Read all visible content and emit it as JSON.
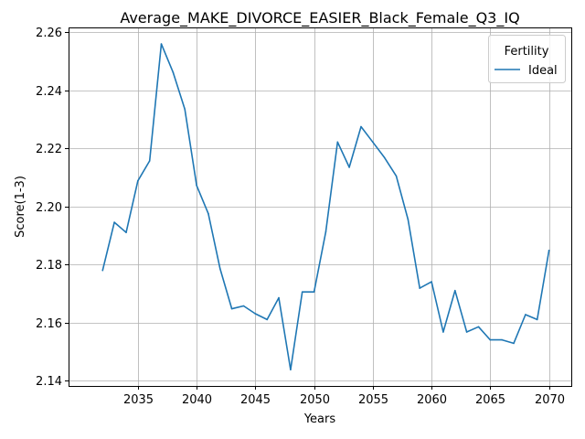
{
  "chart_data": {
    "type": "line",
    "title": "Average_MAKE_DIVORCE_EASIER_Black_Female_Q3_IQ",
    "xlabel": "Years",
    "ylabel": "Score(1-3)",
    "xlim": [
      2029.1,
      2071.9
    ],
    "ylim": [
      2.1381,
      2.2617
    ],
    "xticks": [
      2035,
      2040,
      2045,
      2050,
      2055,
      2060,
      2065,
      2070
    ],
    "yticks": [
      2.14,
      2.16,
      2.18,
      2.2,
      2.22,
      2.24,
      2.26
    ],
    "ytick_labels": [
      "2.14",
      "2.16",
      "2.18",
      "2.20",
      "2.22",
      "2.24",
      "2.26"
    ],
    "grid": true,
    "legend": {
      "title": "Fertility",
      "position": "top-right"
    },
    "series": [
      {
        "name": "Ideal",
        "color": "#1f77b4",
        "x": [
          2032,
          2033,
          2034,
          2035,
          2036,
          2037,
          2038,
          2039,
          2040,
          2041,
          2042,
          2043,
          2044,
          2045,
          2046,
          2047,
          2048,
          2049,
          2050,
          2051,
          2052,
          2053,
          2054,
          2055,
          2056,
          2057,
          2058,
          2059,
          2060,
          2061,
          2062,
          2063,
          2064,
          2065,
          2066,
          2067,
          2068,
          2069,
          2070
        ],
        "y": [
          2.178,
          2.1945,
          2.191,
          2.2088,
          2.2157,
          2.256,
          2.2462,
          2.2335,
          2.2072,
          2.1975,
          2.1785,
          2.1647,
          2.1657,
          2.163,
          2.161,
          2.1685,
          2.1437,
          2.1705,
          2.1705,
          2.1912,
          2.2222,
          2.2135,
          2.2275,
          2.2222,
          2.2168,
          2.2105,
          2.1955,
          2.1718,
          2.174,
          2.1567,
          2.171,
          2.1567,
          2.1585,
          2.154,
          2.154,
          2.1528,
          2.1627,
          2.161,
          2.1848
        ]
      }
    ]
  }
}
